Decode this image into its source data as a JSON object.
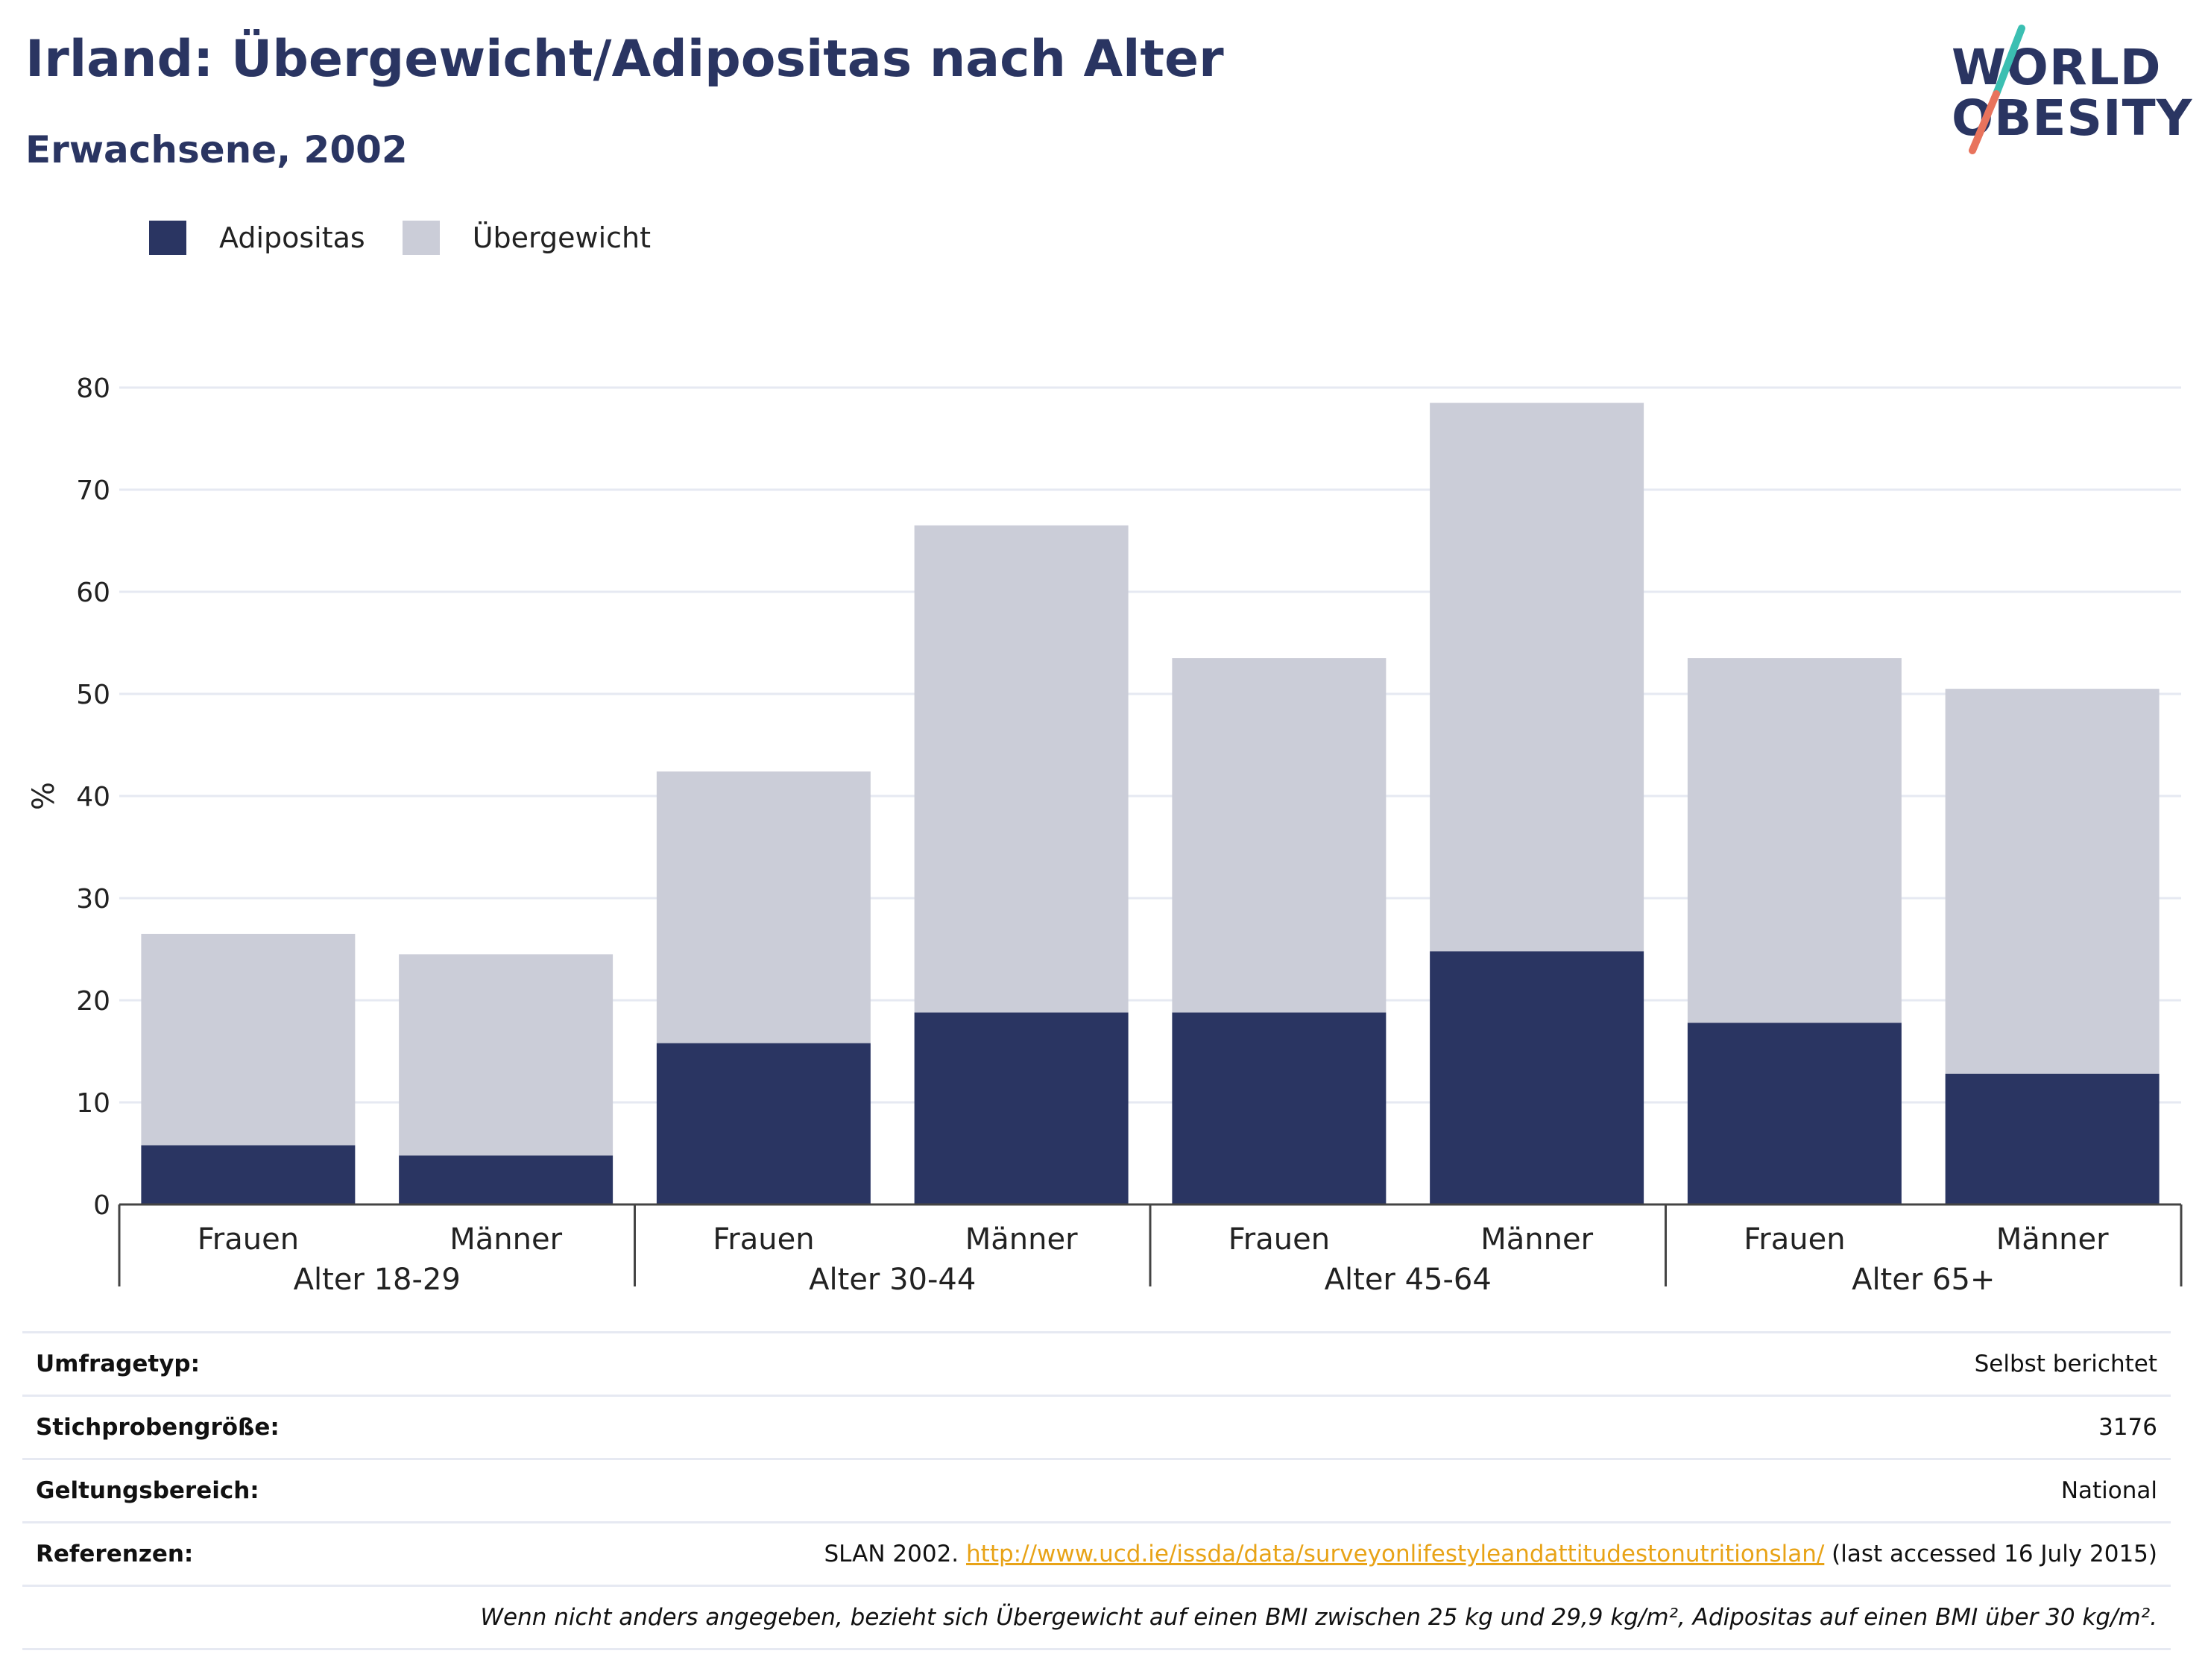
{
  "header": {
    "title": "Irland: Übergewicht/Adipositas nach Alter",
    "subtitle": "Erwachsene, 2002"
  },
  "logo": {
    "line1": "WORLD",
    "line2": "OBESITY"
  },
  "colors": {
    "obesity": "#2a3562",
    "overweight": "#cbcdd8",
    "accent_teal": "#3bbfb2",
    "accent_coral": "#e8735c"
  },
  "chart_data": {
    "type": "bar",
    "stacked": true,
    "ylabel": "%",
    "xlabel": "",
    "ylim": [
      0,
      80
    ],
    "yticks": [
      0,
      10,
      20,
      30,
      40,
      50,
      60,
      70,
      80
    ],
    "grid": true,
    "legend_position": "top-left",
    "groups": [
      "Alter 18-29",
      "Alter 30-44",
      "Alter 45-64",
      "Alter 65+"
    ],
    "categories": [
      "Frauen",
      "Männer",
      "Frauen",
      "Männer",
      "Frauen",
      "Männer",
      "Frauen",
      "Männer"
    ],
    "series": [
      {
        "name": "Adipositas",
        "color": "#2a3562",
        "values": [
          5.8,
          4.8,
          15.8,
          18.8,
          18.8,
          24.8,
          17.8,
          12.8
        ]
      },
      {
        "name": "Übergewicht",
        "color": "#cbcdd8",
        "values": [
          20.7,
          19.7,
          26.6,
          47.7,
          34.7,
          53.7,
          35.7,
          37.7
        ]
      }
    ]
  },
  "info_table": {
    "rows": [
      {
        "label": "Umfragetyp:",
        "value": "Selbst berichtet"
      },
      {
        "label": "Stichprobengröße:",
        "value": "3176"
      },
      {
        "label": "Geltungsbereich:",
        "value": "National"
      }
    ],
    "references": {
      "label": "Referenzen:",
      "prefix": "SLAN 2002.",
      "link": "http://www.ucd.ie/issda/data/surveyonlifestyleandattitudestonutritionslan/",
      "suffix": "(last accessed 16 July 2015)"
    },
    "note": "Wenn nicht anders angegeben, bezieht sich Übergewicht auf einen BMI zwischen 25 kg und 29,9 kg/m², Adipositas auf einen BMI über 30 kg/m²."
  }
}
